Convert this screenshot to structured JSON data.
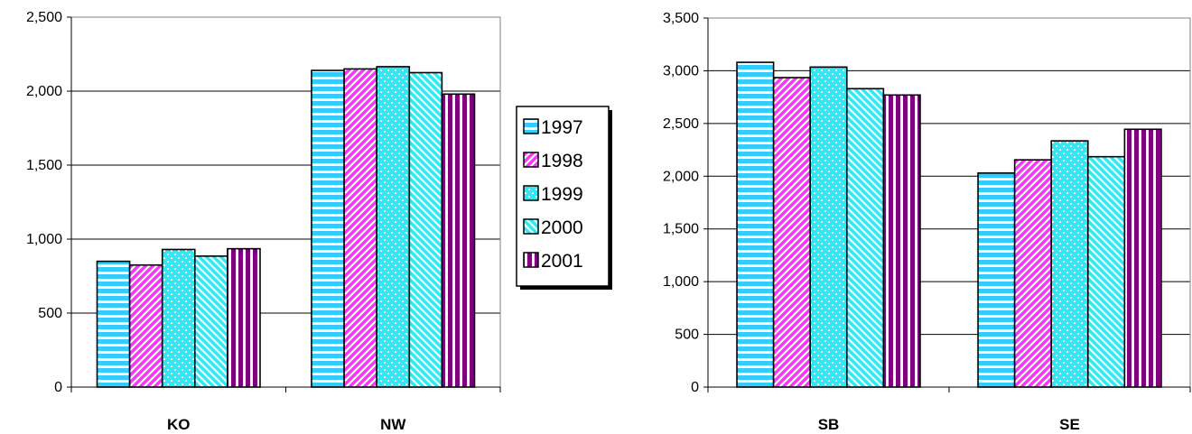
{
  "legend": {
    "entries": [
      {
        "label": "1997",
        "color": "#33ccff",
        "pattern": "hstripes"
      },
      {
        "label": "1998",
        "color": "#ff33ff",
        "pattern": "diag"
      },
      {
        "label": "1999",
        "color": "#33e6f2",
        "pattern": "dots"
      },
      {
        "label": "2000",
        "color": "#33e6f2",
        "pattern": "diag2"
      },
      {
        "label": "2001",
        "color": "#800080",
        "pattern": "vstripes"
      }
    ],
    "placement": "center (between charts)"
  },
  "chart_data": [
    {
      "type": "bar",
      "categories": [
        "KO",
        "NW"
      ],
      "series": [
        {
          "name": "1997",
          "values": [
            850,
            2140
          ]
        },
        {
          "name": "1998",
          "values": [
            825,
            2150
          ]
        },
        {
          "name": "1999",
          "values": [
            930,
            2165
          ]
        },
        {
          "name": "2000",
          "values": [
            885,
            2125
          ]
        },
        {
          "name": "2001",
          "values": [
            935,
            1980
          ]
        }
      ],
      "ylim": [
        0,
        2500
      ],
      "yticks": [
        "0",
        "500",
        "1,000",
        "1,500",
        "2,000",
        "2,500"
      ],
      "grid": true
    },
    {
      "type": "bar",
      "categories": [
        "SB",
        "SE"
      ],
      "series": [
        {
          "name": "1997",
          "values": [
            3080,
            2030
          ]
        },
        {
          "name": "1998",
          "values": [
            2935,
            2155
          ]
        },
        {
          "name": "1999",
          "values": [
            3035,
            2335
          ]
        },
        {
          "name": "2000",
          "values": [
            2830,
            2185
          ]
        },
        {
          "name": "2001",
          "values": [
            2770,
            2445
          ]
        }
      ],
      "ylim": [
        0,
        3500
      ],
      "yticks": [
        "0",
        "500",
        "1,000",
        "1,500",
        "2,000",
        "2,500",
        "3,000",
        "3,500"
      ],
      "grid": true
    }
  ]
}
